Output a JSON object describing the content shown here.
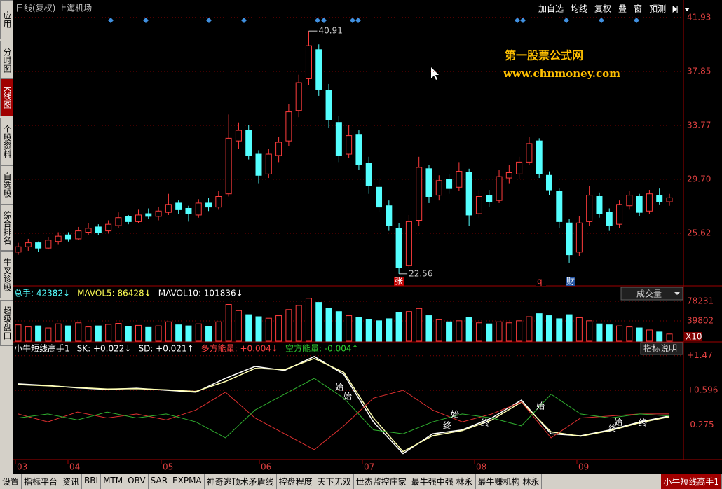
{
  "sidebar": [
    "应用",
    "分时图",
    "K线图",
    "个股资料",
    "自选股",
    "综合排名",
    "牛叉诊股",
    "超级盘口"
  ],
  "toolbar": {
    "title": "日线(复权) 上海机场",
    "buttons": [
      "加自选",
      "均线",
      "复权",
      "叠",
      "窗",
      "预测"
    ]
  },
  "watermark": {
    "name": "第一股票公式网",
    "url": "www.chnmoney.com"
  },
  "bottom_tabs": [
    "设置",
    "指标平台",
    "资讯",
    "BBI",
    "MTM",
    "OBV",
    "SAR",
    "EXPMA",
    "神奇逃顶术矛盾线",
    "控盘程度",
    "天下无双",
    "世杰监控庄家",
    "最牛强中强 林永",
    "最牛赚机构 林永",
    "小牛短线高手1"
  ],
  "chart_data": {
    "type": "candlestick",
    "x_labels": [
      "03",
      "04",
      "05",
      "06",
      "07",
      "08",
      "09"
    ],
    "ylim": [
      21.65,
      42.19
    ],
    "yticks": [
      41.93,
      37.85,
      33.77,
      {
        "value": 29.7,
        "label": "29.70"
      },
      25.62
    ],
    "grid": true,
    "up_color": "#ff3c3c",
    "down_color": "#54ffff",
    "max_label": 40.91,
    "min_label": 22.56,
    "markers": [
      "张",
      "q",
      "财"
    ],
    "ohlc": [
      [
        24.2,
        24.9,
        24.0,
        24.6
      ],
      [
        24.6,
        25.2,
        24.3,
        24.9
      ],
      [
        24.9,
        25.0,
        24.2,
        24.5
      ],
      [
        24.5,
        25.3,
        24.4,
        25.1
      ],
      [
        25.0,
        25.7,
        24.8,
        25.4
      ],
      [
        25.5,
        25.7,
        25.0,
        25.2
      ],
      [
        25.2,
        26.1,
        25.1,
        25.8
      ],
      [
        25.7,
        26.4,
        25.5,
        26.0
      ],
      [
        26.1,
        26.3,
        25.5,
        25.7
      ],
      [
        25.8,
        26.6,
        25.6,
        26.3
      ],
      [
        26.2,
        27.2,
        26.0,
        26.8
      ],
      [
        26.9,
        27.0,
        26.3,
        26.5
      ],
      [
        26.5,
        27.4,
        26.4,
        27.0
      ],
      [
        27.1,
        27.5,
        26.7,
        26.9
      ],
      [
        26.9,
        27.6,
        26.6,
        27.3
      ],
      [
        27.2,
        28.6,
        27.0,
        27.8
      ],
      [
        27.9,
        28.1,
        27.1,
        27.4
      ],
      [
        27.5,
        27.7,
        26.5,
        27.1
      ],
      [
        27.0,
        28.2,
        26.8,
        27.9
      ],
      [
        27.9,
        28.3,
        27.3,
        27.6
      ],
      [
        27.6,
        28.8,
        27.4,
        28.4
      ],
      [
        28.6,
        34.6,
        28.4,
        32.8
      ],
      [
        32.6,
        34.0,
        32.0,
        33.4
      ],
      [
        33.4,
        33.8,
        31.2,
        31.5
      ],
      [
        31.6,
        31.9,
        29.4,
        30.0
      ],
      [
        30.1,
        32.0,
        29.8,
        31.6
      ],
      [
        31.5,
        32.9,
        31.0,
        32.5
      ],
      [
        32.6,
        35.4,
        32.2,
        34.8
      ],
      [
        34.9,
        37.6,
        34.4,
        37.0
      ],
      [
        37.3,
        40.91,
        36.8,
        39.8
      ],
      [
        39.5,
        39.9,
        36.0,
        36.5
      ],
      [
        36.4,
        36.9,
        33.6,
        34.2
      ],
      [
        34.0,
        34.5,
        31.0,
        31.5
      ],
      [
        31.6,
        33.8,
        31.3,
        33.0
      ],
      [
        33.1,
        33.4,
        30.4,
        30.8
      ],
      [
        30.9,
        31.4,
        28.6,
        29.2
      ],
      [
        29.1,
        29.8,
        27.2,
        27.6
      ],
      [
        27.7,
        28.1,
        25.8,
        26.2
      ],
      [
        26.0,
        26.4,
        22.56,
        23.0
      ],
      [
        23.2,
        27.0,
        23.0,
        26.5
      ],
      [
        26.6,
        31.4,
        26.2,
        30.6
      ],
      [
        30.5,
        30.8,
        27.9,
        28.4
      ],
      [
        28.5,
        30.0,
        28.1,
        29.6
      ],
      [
        29.7,
        30.1,
        28.6,
        29.0
      ],
      [
        29.1,
        31.0,
        28.8,
        30.3
      ],
      [
        30.2,
        30.5,
        26.2,
        27.0
      ],
      [
        27.1,
        28.9,
        26.8,
        28.4
      ],
      [
        28.5,
        28.9,
        27.6,
        28.0
      ],
      [
        28.1,
        30.4,
        27.9,
        29.9
      ],
      [
        29.8,
        30.8,
        29.4,
        30.2
      ],
      [
        30.1,
        31.4,
        29.7,
        31.0
      ],
      [
        31.0,
        32.9,
        30.8,
        32.4
      ],
      [
        32.6,
        32.8,
        29.8,
        30.1
      ],
      [
        30.0,
        30.3,
        28.5,
        28.9
      ],
      [
        28.8,
        29.0,
        26.0,
        26.5
      ],
      [
        26.4,
        26.7,
        23.4,
        24.0
      ],
      [
        24.2,
        26.9,
        23.9,
        26.4
      ],
      [
        26.5,
        29.2,
        26.2,
        28.5
      ],
      [
        28.4,
        28.7,
        26.8,
        27.1
      ],
      [
        27.2,
        27.5,
        25.8,
        26.2
      ],
      [
        26.3,
        28.1,
        26.0,
        27.8
      ],
      [
        27.7,
        28.8,
        27.4,
        28.5
      ],
      [
        28.4,
        28.6,
        26.9,
        27.2
      ],
      [
        27.3,
        28.9,
        27.1,
        28.6
      ],
      [
        28.5,
        29.0,
        27.8,
        28.0
      ],
      [
        28.0,
        28.6,
        27.7,
        28.3
      ]
    ],
    "volume": {
      "header": [
        "总手: 42382↓",
        "MAVOL5: 86428↓",
        "MAVOL10: 101836↓"
      ],
      "selector": "成交量",
      "ylim": [
        0,
        102900
      ],
      "yticks": [
        78231,
        39802
      ],
      "unit": "X10",
      "values": [
        32000,
        28000,
        30000,
        26000,
        34000,
        30000,
        36000,
        28000,
        30000,
        33000,
        35000,
        29000,
        31000,
        27000,
        30000,
        38000,
        32000,
        30000,
        34000,
        29000,
        38000,
        72000,
        60000,
        52000,
        48000,
        45000,
        50000,
        62000,
        70000,
        84000,
        76000,
        64000,
        58000,
        50000,
        46000,
        42000,
        40000,
        44000,
        56000,
        58000,
        64000,
        50000,
        42000,
        38000,
        40000,
        46000,
        36000,
        34000,
        38000,
        36000,
        40000,
        48000,
        54000,
        50000,
        44000,
        52000,
        46000,
        40000,
        34000,
        32000,
        30000,
        28000,
        26000,
        22000,
        18000,
        14000
      ]
    },
    "indicator": {
      "header": [
        "小牛短线高手1",
        "SK: +0.022↓",
        "SD: +0.021↑",
        "多方能量: +0.004↓",
        "空方能量: -0.004↑"
      ],
      "button": "指标说明",
      "ylim": [
        -1.15,
        1.73
      ],
      "yticks": [
        {
          "value": 1.47,
          "label": "+1.47"
        },
        {
          "value": 0.596,
          "label": "+0.596"
        },
        {
          "value": -0.275,
          "label": "-0.275"
        }
      ],
      "signals": [
        "始",
        "始",
        "始",
        "终",
        "终",
        "始",
        "终",
        "始",
        "终"
      ],
      "series": [
        {
          "color": "#ffffff",
          "values": [
            0.76,
            0.72,
            0.66,
            0.62,
            0.65,
            0.6,
            0.55,
            0.9,
            1.2,
            1.1,
            1.45,
            1.0,
            -0.2,
            -1.0,
            -0.5,
            -0.4,
            -0.1,
            0.35,
            -0.5,
            -0.55,
            -0.4,
            -0.2,
            -0.05
          ]
        },
        {
          "color": "#ffffb0",
          "values": [
            0.74,
            0.71,
            0.67,
            0.63,
            0.64,
            0.61,
            0.57,
            0.82,
            1.15,
            1.12,
            1.4,
            1.05,
            -0.1,
            -0.95,
            -0.55,
            -0.42,
            -0.15,
            0.3,
            -0.45,
            -0.56,
            -0.42,
            -0.22,
            -0.07
          ]
        },
        {
          "color": "#e03030",
          "values": [
            0.0,
            -0.2,
            0.05,
            -0.1,
            0.0,
            -0.15,
            0.1,
            0.55,
            -0.1,
            -0.5,
            -0.9,
            -0.3,
            0.4,
            0.6,
            0.1,
            -0.2,
            0.0,
            0.3,
            -0.6,
            -0.1,
            -0.05,
            0.0,
            0.0
          ]
        },
        {
          "color": "#30b030",
          "values": [
            -0.1,
            0.0,
            -0.15,
            0.05,
            -0.1,
            0.0,
            -0.2,
            -0.6,
            0.1,
            0.5,
            0.9,
            0.4,
            -0.4,
            -0.5,
            -0.2,
            0.0,
            -0.1,
            -0.3,
            0.5,
            0.0,
            -0.1,
            0.0,
            -0.05
          ]
        }
      ]
    }
  }
}
